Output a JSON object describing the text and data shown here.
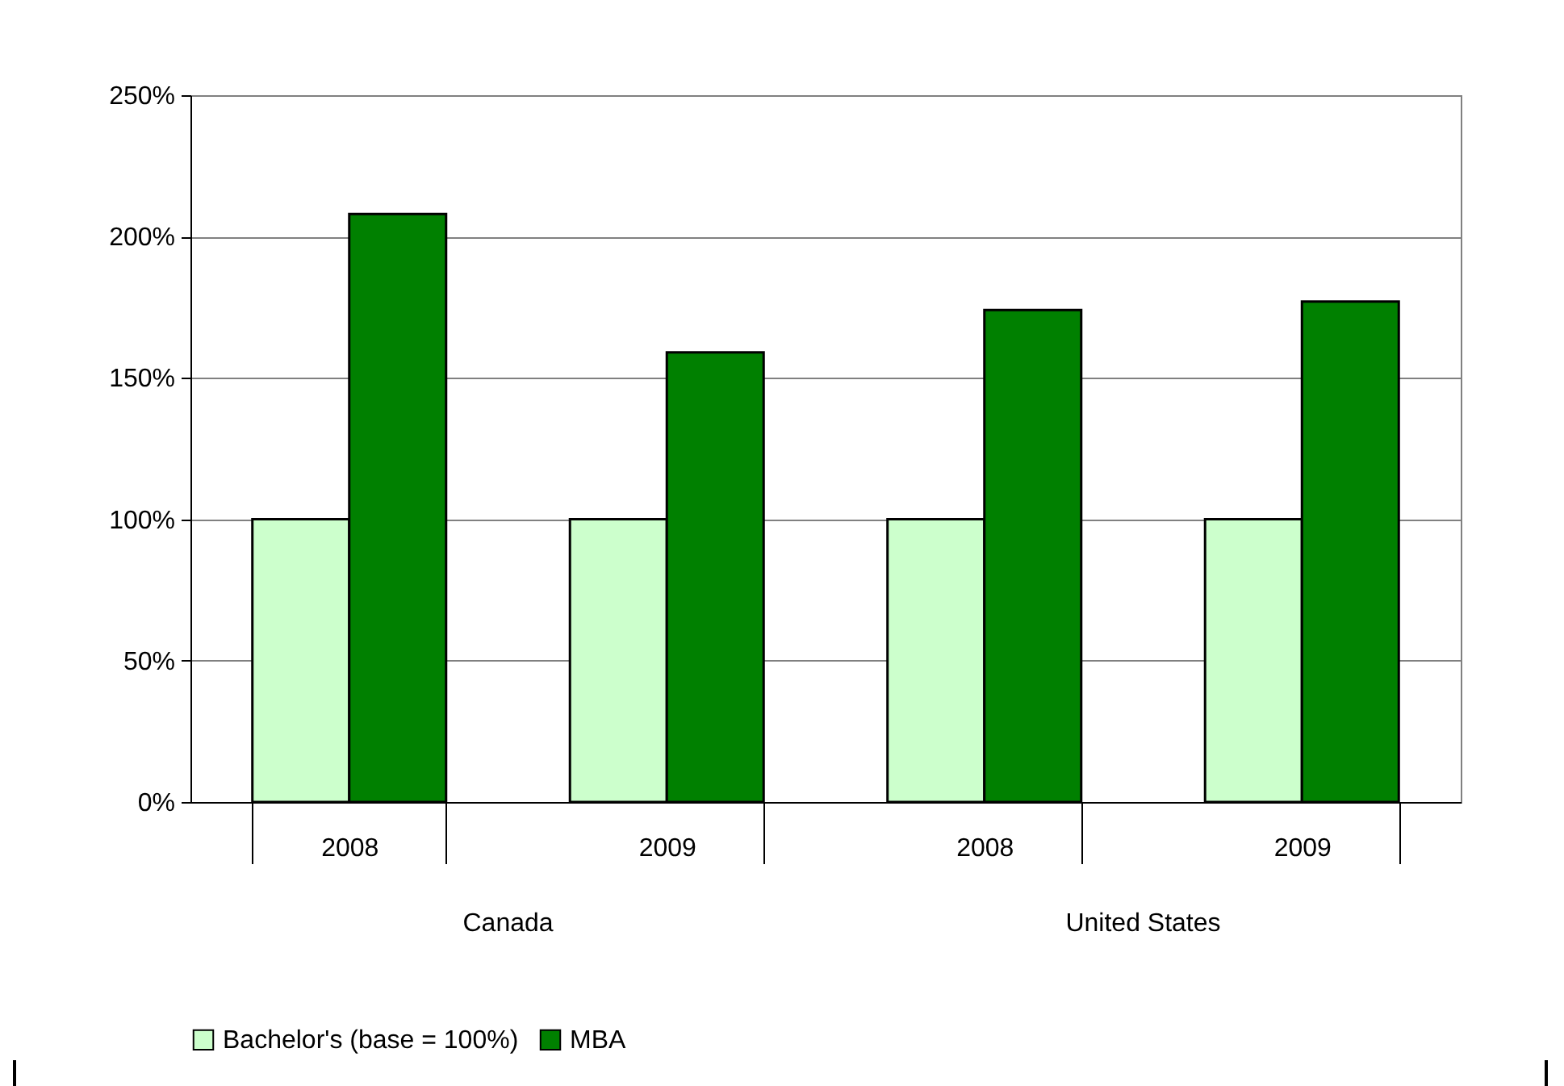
{
  "chart_data": {
    "type": "bar",
    "categories": [
      "2008",
      "2009",
      "2008",
      "2009"
    ],
    "series": [
      {
        "name": "Bachelor's (base = 100%)",
        "color": "#ccffcc",
        "values": [
          100,
          100,
          100,
          100
        ]
      },
      {
        "name": "MBA",
        "color": "#008000",
        "values": [
          208,
          159,
          174,
          177
        ]
      }
    ],
    "ylim": [
      0,
      250
    ],
    "yticks": [
      {
        "value": 0,
        "label": "0%"
      },
      {
        "value": 50,
        "label": "50%"
      },
      {
        "value": 100,
        "label": "100%"
      },
      {
        "value": 150,
        "label": "150%"
      },
      {
        "value": 200,
        "label": "200%"
      },
      {
        "value": 250,
        "label": "250%"
      }
    ],
    "annotations": [
      "Canada",
      "United States"
    ],
    "grid": "y",
    "legend": "bottom"
  }
}
